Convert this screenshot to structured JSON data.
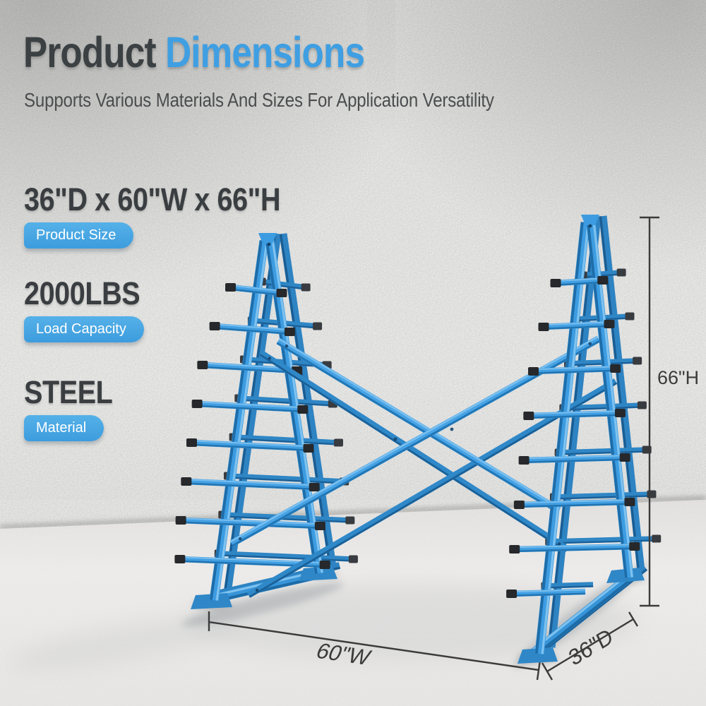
{
  "header": {
    "title_primary": "Product",
    "title_accent": "Dimensions",
    "subtitle": "Supports Various Materials And Sizes For Application Versatility"
  },
  "specs": [
    {
      "value": "36\"D x 60\"W x 66\"H",
      "label": "Product Size"
    },
    {
      "value": "2000LBS",
      "label": "Load Capacity"
    },
    {
      "value": "STEEL",
      "label": "Material"
    }
  ],
  "dimension_labels": {
    "height": "66\"H",
    "width": "60\"W",
    "depth": "36\"D"
  },
  "illustration": {
    "name": "blue-a-frame-vertical-bar-storage-rack",
    "arm_tip_caps": "black"
  },
  "colors": {
    "accent_blue": "#3f9fe2",
    "heading_dark": "#3b4043",
    "badge_blue": "#46a7e3",
    "rack_blue": "#3f9fe3",
    "cap_black": "#26282b",
    "dimension_line": "#3b3b3b",
    "wall_gray": "#dbdbd9",
    "floor_gray": "#eceae8"
  }
}
